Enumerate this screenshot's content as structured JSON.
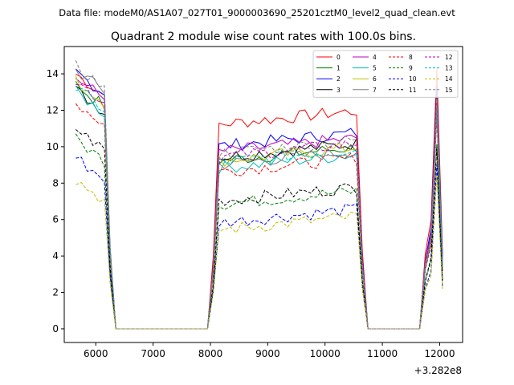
{
  "chart_data": {
    "type": "line",
    "suptitle": "Data file: modeM0/AS1A07_027T01_9000003690_25201cztM0_level2_quad_clean.evt",
    "title": "Quadrant 2 module wise count rates with 100.0s bins.",
    "xlabel": "",
    "ylabel": "",
    "offset_label": "+3.282e8",
    "xlim": [
      5450,
      12400
    ],
    "ylim": [
      -0.75,
      15.5
    ],
    "xticks": [
      6000,
      7000,
      8000,
      9000,
      10000,
      11000,
      12000
    ],
    "yticks": [
      0,
      2,
      4,
      6,
      8,
      10,
      12,
      14
    ],
    "x_range_note": "x values are offsets from 328200000 s",
    "segments": [
      {
        "x_start": 5650,
        "x_end": 6250
      },
      {
        "x_start": 8050,
        "x_end": 10650
      },
      {
        "x_start": 11750,
        "x_end": 12050
      }
    ],
    "series": [
      {
        "name": "0",
        "color": "#ff0000",
        "dash": false,
        "levels": [
          13.4,
          11.2,
          11.9
        ]
      },
      {
        "name": "1",
        "color": "#008000",
        "dash": false,
        "levels": [
          12.8,
          9.2,
          10.6
        ]
      },
      {
        "name": "2",
        "color": "#0000ff",
        "dash": false,
        "levels": [
          13.5,
          10.0,
          11.0
        ]
      },
      {
        "name": "3",
        "color": "#000000",
        "dash": false,
        "levels": [
          12.5,
          9.4,
          9.8
        ]
      },
      {
        "name": "4",
        "color": "#bf00bf",
        "dash": false,
        "levels": [
          13.2,
          9.7,
          10.4
        ]
      },
      {
        "name": "5",
        "color": "#00bfbf",
        "dash": false,
        "levels": [
          12.4,
          8.8,
          9.6
        ]
      },
      {
        "name": "6",
        "color": "#bfbf00",
        "dash": false,
        "levels": [
          13.0,
          9.2,
          10.0
        ]
      },
      {
        "name": "7",
        "color": "#808080",
        "dash": false,
        "levels": [
          13.6,
          9.0,
          9.4
        ]
      },
      {
        "name": "8",
        "color": "#ff0000",
        "dash": true,
        "levels": [
          11.8,
          8.6,
          9.2
        ]
      },
      {
        "name": "9",
        "color": "#008000",
        "dash": true,
        "levels": [
          9.8,
          6.8,
          7.6
        ]
      },
      {
        "name": "10",
        "color": "#0000ff",
        "dash": true,
        "levels": [
          8.8,
          5.8,
          6.4
        ]
      },
      {
        "name": "11",
        "color": "#000000",
        "dash": true,
        "levels": [
          10.4,
          7.0,
          7.8
        ]
      },
      {
        "name": "12",
        "color": "#bf00bf",
        "dash": true,
        "levels": [
          13.0,
          9.4,
          10.2
        ]
      },
      {
        "name": "13",
        "color": "#00bfbf",
        "dash": true,
        "levels": [
          12.6,
          9.1,
          9.8
        ]
      },
      {
        "name": "14",
        "color": "#bfbf00",
        "dash": true,
        "levels": [
          7.6,
          5.4,
          5.8
        ]
      },
      {
        "name": "15",
        "color": "#808080",
        "dash": true,
        "levels": [
          13.8,
          9.6,
          10.0
        ]
      }
    ],
    "legend_location": "top-right",
    "legend_columns": 4
  }
}
